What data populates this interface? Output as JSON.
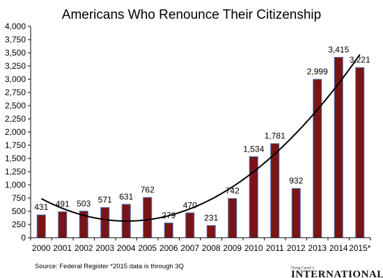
{
  "chart_data": {
    "type": "bar",
    "title": "Americans Who Renounce Their Citizenship",
    "categories": [
      "2000",
      "2001",
      "2002",
      "2003",
      "2004",
      "2005",
      "2006",
      "2007",
      "2008",
      "2009",
      "2010",
      "2011",
      "2012",
      "2013",
      "2014",
      "2015*"
    ],
    "values": [
      431,
      491,
      503,
      571,
      631,
      762,
      279,
      470,
      231,
      742,
      1534,
      1781,
      932,
      2999,
      3415,
      3221
    ],
    "data_labels": [
      "431",
      "491",
      "503",
      "571",
      "631",
      "762",
      "279",
      "470",
      "231",
      "742",
      "1,534",
      "1,781",
      "932",
      "2,999",
      "3,415",
      "3,221"
    ],
    "yticks": [
      "0",
      "250",
      "500",
      "750",
      "1,000",
      "1,250",
      "1,500",
      "1,750",
      "2,000",
      "2,250",
      "2,500",
      "2,750",
      "3,000",
      "3,250",
      "3,500",
      "3,750",
      "4,000"
    ],
    "ylim": [
      0,
      4000
    ],
    "ystep": 250,
    "trendline": true,
    "grid": false,
    "bar_color": "#7a1416",
    "bar_edge_color": "#4a6fb0"
  },
  "footer": {
    "source_note": "Source: Federal Register   *2015 data is through 3Q"
  },
  "brand": {
    "top_line": "Doug Casey's",
    "main_line": "INTERNATIONAL MAN"
  }
}
